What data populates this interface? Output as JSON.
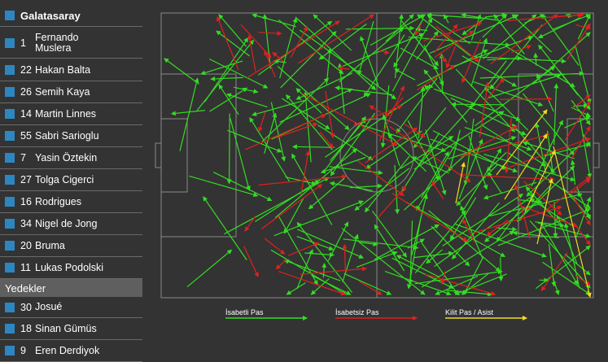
{
  "team": {
    "name": "Galatasaray"
  },
  "players": [
    {
      "number": "1",
      "name": "Fernando Muslera"
    },
    {
      "number": "22",
      "name": "Hakan Balta"
    },
    {
      "number": "26",
      "name": "Semih Kaya"
    },
    {
      "number": "14",
      "name": "Martin Linnes"
    },
    {
      "number": "55",
      "name": "Sabri Sarioglu"
    },
    {
      "number": "7",
      "name": "Yasin Öztekin"
    },
    {
      "number": "27",
      "name": "Tolga Cigerci"
    },
    {
      "number": "16",
      "name": "Rodrigues"
    },
    {
      "number": "34",
      "name": "Nigel de Jong"
    },
    {
      "number": "20",
      "name": "Bruma"
    },
    {
      "number": "11",
      "name": "Lukas Podolski"
    }
  ],
  "subs_label": "Yedekler",
  "subs": [
    {
      "number": "30",
      "name": "Josué"
    },
    {
      "number": "18",
      "name": "Sinan Gümüs"
    },
    {
      "number": "9",
      "name": "Eren Derdiyok"
    }
  ],
  "legend": {
    "accurate": "İsabetli Pas",
    "inaccurate": "İsabetsiz Pas",
    "key": "Kilit Pas / Asist"
  },
  "colors": {
    "accurate": "#33dd22",
    "inaccurate": "#e02020",
    "key": "#f2dc1e",
    "accent": "#2e86c1",
    "pitch": "#333333",
    "lines": "#8a8a8a"
  }
}
